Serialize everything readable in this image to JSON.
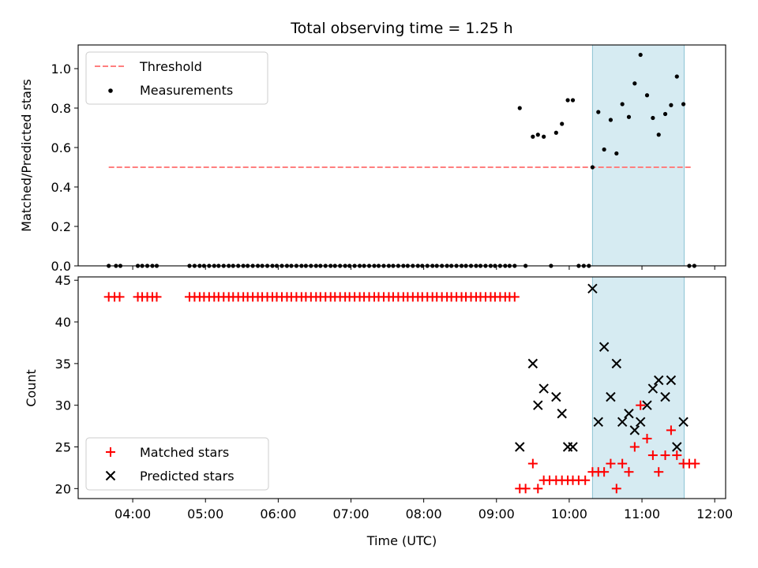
{
  "chart_data": {
    "type": "scatter",
    "title": "Total observing time = 1.25 h",
    "colors": {
      "threshold": "#ff7f7f",
      "measurement": "#000000",
      "matched": "#ff0000",
      "predicted": "#000000",
      "span": "#add8e6"
    },
    "shared_x": {
      "label": "Time (UTC)",
      "unit": "hours",
      "range": [
        3.25,
        12.15
      ],
      "ticks": [
        {
          "value": 4,
          "label": "04:00"
        },
        {
          "value": 5,
          "label": "05:00"
        },
        {
          "value": 6,
          "label": "06:00"
        },
        {
          "value": 7,
          "label": "07:00"
        },
        {
          "value": 8,
          "label": "08:00"
        },
        {
          "value": 9,
          "label": "09:00"
        },
        {
          "value": 10,
          "label": "10:00"
        },
        {
          "value": 11,
          "label": "11:00"
        },
        {
          "value": 12,
          "label": "12:00"
        }
      ]
    },
    "highlight_span": [
      10.32,
      11.58
    ],
    "top": {
      "ylabel": "Matched/Predicted stars",
      "ylim": [
        0,
        1.12
      ],
      "yticks": [
        {
          "value": 0,
          "label": "0.0"
        },
        {
          "value": 0.2,
          "label": "0.2"
        },
        {
          "value": 0.4,
          "label": "0.4"
        },
        {
          "value": 0.6,
          "label": "0.6"
        },
        {
          "value": 0.8,
          "label": "0.8"
        },
        {
          "value": 1.0,
          "label": "1.0"
        }
      ],
      "legend": {
        "placement": "upper-left",
        "threshold_label": "Threshold",
        "measurement_label": "Measurements"
      },
      "threshold": {
        "value": 0.5,
        "x": [
          3.67,
          11.7
        ]
      },
      "zero_points": [
        3.67,
        3.77,
        3.83,
        4.07,
        4.13,
        4.2,
        4.27,
        4.33,
        4.78,
        4.85,
        4.92,
        4.98,
        5.05,
        5.12,
        5.18,
        5.25,
        5.32,
        5.38,
        5.45,
        5.52,
        5.58,
        5.65,
        5.72,
        5.78,
        5.85,
        5.92,
        5.98,
        6.05,
        6.12,
        6.18,
        6.25,
        6.32,
        6.38,
        6.45,
        6.52,
        6.58,
        6.65,
        6.72,
        6.78,
        6.85,
        6.92,
        6.98,
        7.05,
        7.12,
        7.18,
        7.25,
        7.32,
        7.38,
        7.45,
        7.52,
        7.58,
        7.65,
        7.72,
        7.78,
        7.85,
        7.92,
        7.98,
        8.05,
        8.12,
        8.18,
        8.25,
        8.32,
        8.38,
        8.45,
        8.52,
        8.58,
        8.65,
        8.72,
        8.78,
        8.85,
        8.92,
        8.98,
        9.05,
        9.12,
        9.18,
        9.25,
        9.4,
        9.75,
        10.13,
        10.2,
        10.27,
        11.65,
        11.72
      ],
      "points": [
        [
          9.32,
          0.8
        ],
        [
          9.5,
          0.655
        ],
        [
          9.57,
          0.665
        ],
        [
          9.65,
          0.655
        ],
        [
          9.82,
          0.675
        ],
        [
          9.9,
          0.72
        ],
        [
          9.98,
          0.84
        ],
        [
          10.05,
          0.84
        ],
        [
          10.32,
          0.5
        ],
        [
          10.4,
          0.78
        ],
        [
          10.48,
          0.59
        ],
        [
          10.57,
          0.74
        ],
        [
          10.65,
          0.57
        ],
        [
          10.73,
          0.82
        ],
        [
          10.82,
          0.755
        ],
        [
          10.9,
          0.925
        ],
        [
          10.98,
          1.07
        ],
        [
          11.07,
          0.865
        ],
        [
          11.15,
          0.75
        ],
        [
          11.23,
          0.665
        ],
        [
          11.32,
          0.77
        ],
        [
          11.4,
          0.815
        ],
        [
          11.48,
          0.96
        ],
        [
          11.57,
          0.82
        ]
      ]
    },
    "bottom": {
      "ylabel": "Count",
      "ylim": [
        18.8,
        45.4
      ],
      "yticks": [
        {
          "value": 20,
          "label": "20"
        },
        {
          "value": 25,
          "label": "25"
        },
        {
          "value": 30,
          "label": "30"
        },
        {
          "value": 35,
          "label": "35"
        },
        {
          "value": 40,
          "label": "40"
        },
        {
          "value": 45,
          "label": "45"
        }
      ],
      "legend": {
        "placement": "lower-left",
        "matched_label": "Matched stars",
        "predicted_label": "Predicted stars"
      },
      "matched": {
        "constant_value": 43,
        "constant_x": [
          3.67,
          3.75,
          3.82,
          4.07,
          4.13,
          4.2,
          4.27,
          4.33,
          4.78,
          4.85,
          4.92,
          4.98,
          5.05,
          5.12,
          5.18,
          5.25,
          5.32,
          5.38,
          5.45,
          5.52,
          5.58,
          5.65,
          5.72,
          5.78,
          5.85,
          5.92,
          5.98,
          6.05,
          6.12,
          6.18,
          6.25,
          6.32,
          6.38,
          6.45,
          6.52,
          6.58,
          6.65,
          6.72,
          6.78,
          6.85,
          6.92,
          6.98,
          7.05,
          7.12,
          7.18,
          7.25,
          7.32,
          7.38,
          7.45,
          7.52,
          7.58,
          7.65,
          7.72,
          7.78,
          7.85,
          7.92,
          7.98,
          8.05,
          8.12,
          8.18,
          8.25,
          8.32,
          8.38,
          8.45,
          8.52,
          8.58,
          8.65,
          8.72,
          8.78,
          8.85,
          8.92,
          8.98,
          9.05,
          9.12,
          9.18,
          9.25
        ],
        "points": [
          [
            9.32,
            20
          ],
          [
            9.4,
            20
          ],
          [
            9.5,
            23
          ],
          [
            9.57,
            20
          ],
          [
            9.65,
            21
          ],
          [
            9.73,
            21
          ],
          [
            9.82,
            21
          ],
          [
            9.9,
            21
          ],
          [
            9.98,
            21
          ],
          [
            10.05,
            21
          ],
          [
            10.13,
            21
          ],
          [
            10.22,
            21
          ],
          [
            10.32,
            22
          ],
          [
            10.4,
            22
          ],
          [
            10.48,
            22
          ],
          [
            10.57,
            23
          ],
          [
            10.65,
            20
          ],
          [
            10.73,
            23
          ],
          [
            10.82,
            22
          ],
          [
            10.9,
            25
          ],
          [
            10.98,
            30
          ],
          [
            11.07,
            26
          ],
          [
            11.15,
            24
          ],
          [
            11.23,
            22
          ],
          [
            11.32,
            24
          ],
          [
            11.4,
            27
          ],
          [
            11.48,
            24
          ],
          [
            11.57,
            23
          ],
          [
            11.65,
            23
          ],
          [
            11.73,
            23
          ]
        ]
      },
      "predicted": {
        "points": [
          [
            9.32,
            25
          ],
          [
            9.5,
            35
          ],
          [
            9.57,
            30
          ],
          [
            9.65,
            32
          ],
          [
            9.82,
            31
          ],
          [
            9.9,
            29
          ],
          [
            9.98,
            25
          ],
          [
            10.05,
            25
          ],
          [
            10.32,
            44
          ],
          [
            10.4,
            28
          ],
          [
            10.48,
            37
          ],
          [
            10.57,
            31
          ],
          [
            10.65,
            35
          ],
          [
            10.73,
            28
          ],
          [
            10.82,
            29
          ],
          [
            10.9,
            27
          ],
          [
            10.98,
            28
          ],
          [
            11.07,
            30
          ],
          [
            11.15,
            32
          ],
          [
            11.23,
            33
          ],
          [
            11.32,
            31
          ],
          [
            11.4,
            33
          ],
          [
            11.48,
            25
          ],
          [
            11.57,
            28
          ]
        ]
      }
    }
  }
}
